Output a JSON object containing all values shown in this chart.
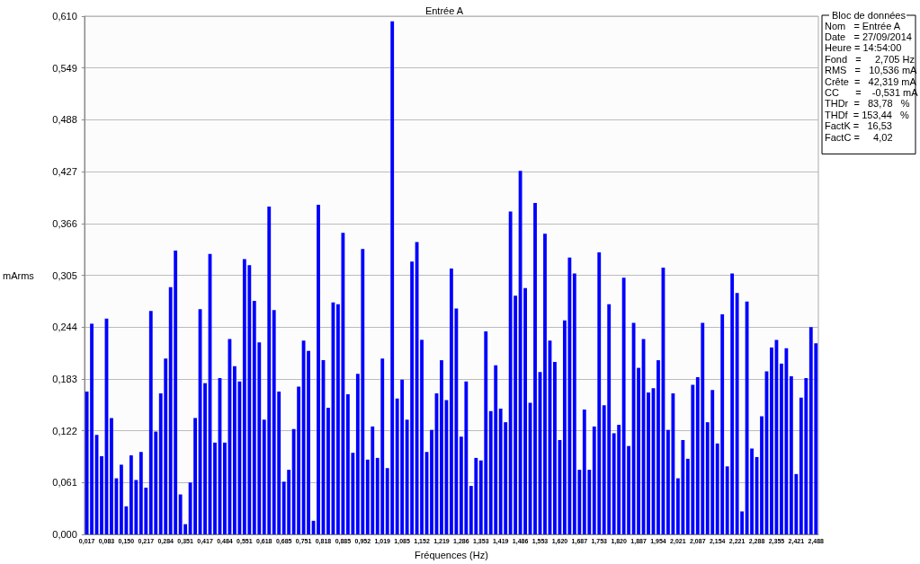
{
  "chart_data": {
    "type": "bar",
    "title": "Entrée A",
    "xlabel": "Fréquences (Hz)",
    "ylabel": "mArms",
    "categories": [
      "0,017",
      null,
      null,
      null,
      "0,083",
      null,
      null,
      null,
      "0,150",
      null,
      null,
      null,
      "0,217",
      null,
      null,
      null,
      "0,284",
      null,
      null,
      null,
      "0,351",
      null,
      null,
      null,
      "0,417",
      null,
      null,
      null,
      "0,484",
      null,
      null,
      null,
      "0,551",
      null,
      null,
      null,
      "0,618",
      null,
      null,
      null,
      "0,685",
      null,
      null,
      null,
      "0,751",
      null,
      null,
      null,
      "0,818",
      null,
      null,
      null,
      "0,885",
      null,
      null,
      null,
      "0,952",
      null,
      null,
      null,
      "1,019",
      null,
      null,
      null,
      "1,085",
      null,
      null,
      null,
      "1,152",
      null,
      null,
      null,
      "1,219",
      null,
      null,
      null,
      "1,286",
      null,
      null,
      null,
      "1,353",
      null,
      null,
      null,
      "1,419",
      null,
      null,
      null,
      "1,486",
      null,
      null,
      null,
      "1,553",
      null,
      null,
      null,
      "1,620",
      null,
      null,
      null,
      "1,687",
      null,
      null,
      null,
      "1,753",
      null,
      null,
      null,
      "1,820",
      null,
      null,
      null,
      "1,887",
      null,
      null,
      null,
      "1,954",
      null,
      null,
      null,
      "2,021",
      null,
      null,
      null,
      "2,087",
      null,
      null,
      null,
      "2,154",
      null,
      null,
      null,
      "2,221",
      null,
      null,
      null,
      "2,288",
      null,
      null,
      null,
      "2,355",
      null,
      null,
      null,
      "2,421",
      null,
      null,
      null,
      "2,488"
    ],
    "values": [
      0.168,
      0.248,
      0.117,
      0.092,
      0.254,
      0.137,
      0.066,
      0.082,
      0.033,
      0.093,
      0.064,
      0.097,
      0.055,
      0.263,
      0.121,
      0.166,
      0.207,
      0.291,
      0.334,
      0.047,
      0.012,
      0.061,
      0.137,
      0.265,
      0.178,
      0.33,
      0.108,
      0.184,
      0.108,
      0.23,
      0.198,
      0.18,
      0.324,
      0.317,
      0.275,
      0.226,
      0.135,
      0.386,
      0.264,
      0.168,
      0.062,
      0.076,
      0.124,
      0.174,
      0.228,
      0.216,
      0.016,
      0.388,
      0.205,
      0.149,
      0.273,
      0.271,
      0.355,
      0.165,
      0.096,
      0.189,
      0.336,
      0.088,
      0.127,
      0.09,
      0.207,
      0.078,
      0.604,
      0.16,
      0.182,
      0.135,
      0.321,
      0.344,
      0.229,
      0.097,
      0.123,
      0.166,
      0.205,
      0.158,
      0.313,
      0.266,
      0.115,
      0.18,
      0.057,
      0.09,
      0.087,
      0.239,
      0.145,
      0.199,
      0.148,
      0.132,
      0.38,
      0.281,
      0.428,
      0.29,
      0.155,
      0.39,
      0.191,
      0.354,
      0.228,
      0.203,
      0.111,
      0.252,
      0.326,
      0.307,
      0.076,
      0.147,
      0.076,
      0.127,
      0.332,
      0.152,
      0.271,
      0.119,
      0.129,
      0.302,
      0.104,
      0.249,
      0.196,
      0.23,
      0.167,
      0.172,
      0.205,
      0.314,
      0.123,
      0.166,
      0.066,
      0.111,
      0.089,
      0.176,
      0.185,
      0.249,
      0.132,
      0.17,
      0.107,
      0.259,
      0.08,
      0.307,
      0.284,
      0.027,
      0.274,
      0.101,
      0.091,
      0.139,
      0.192,
      0.22,
      0.229,
      0.201,
      0.219,
      0.186,
      0.071,
      0.161,
      0.184,
      0.244,
      0.225
    ],
    "color": "#0000ff",
    "ylim": [
      0,
      0.61
    ],
    "yticks": [
      {
        "value": 0,
        "label": "0,000"
      },
      {
        "value": 0.061,
        "label": "0,061"
      },
      {
        "value": 0.122,
        "label": "0,122"
      },
      {
        "value": 0.183,
        "label": "0,183"
      },
      {
        "value": 0.244,
        "label": "0,244"
      },
      {
        "value": 0.305,
        "label": "0,305"
      },
      {
        "value": 0.366,
        "label": "0,366"
      },
      {
        "value": 0.427,
        "label": "0,427"
      },
      {
        "value": 0.488,
        "label": "0,488"
      },
      {
        "value": 0.549,
        "label": "0,549"
      },
      {
        "value": 0.61,
        "label": "0,610"
      }
    ],
    "grid": "y",
    "annotations": [
      "Bloc de données",
      "Nom   = Entrée A",
      "Date   = 27/09/2014",
      "Heure = 14:54:00",
      "Fond   =     2,705 Hz",
      "RMS   =   10,536 mA",
      "Crête  =   42,319 mA",
      "CC      =    -0,531 mA",
      "THDr  =   83,78   %",
      "THDf  = 153,44   %",
      "FactK =   16,53",
      "FactC =     4,02"
    ]
  }
}
